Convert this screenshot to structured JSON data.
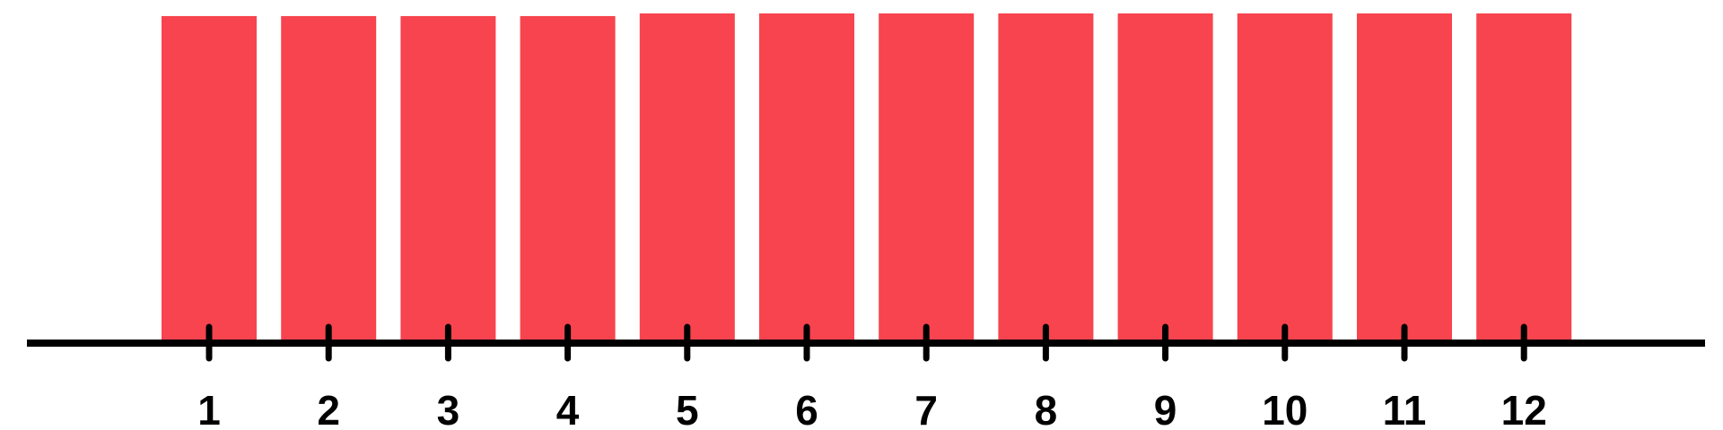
{
  "chart_data": {
    "type": "bar",
    "title": "",
    "xlabel": "",
    "ylabel": "",
    "categories": [
      "1",
      "2",
      "3",
      "4",
      "5",
      "6",
      "7",
      "8",
      "9",
      "10",
      "11",
      "12"
    ],
    "values": [
      99.2,
      99.2,
      99.2,
      99.2,
      100,
      100,
      100,
      100,
      100,
      100,
      100,
      100
    ],
    "ylim": [
      0,
      100
    ],
    "grid": false,
    "legend": "none",
    "bar_color": "#f7444e",
    "axis_color": "#000000"
  }
}
